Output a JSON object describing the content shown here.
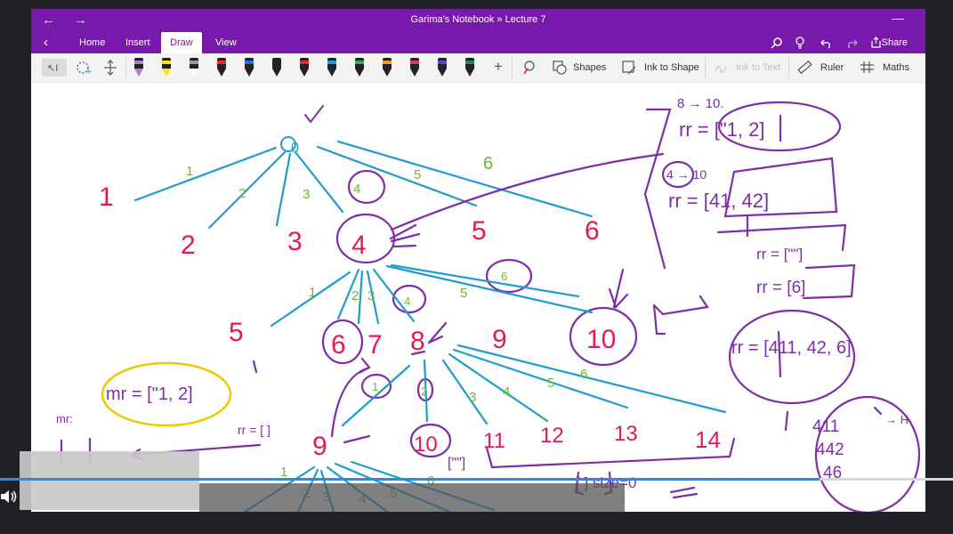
{
  "window": {
    "title": "Garima's Notebook » Lecture 7"
  },
  "ribbon": {
    "tabs": [
      "Home",
      "Insert",
      "Draw",
      "View"
    ],
    "active_tab": "Draw",
    "share_label": "Share"
  },
  "toolbar": {
    "pens": [
      {
        "band": "#b57ad6",
        "tip": "#b57ad6"
      },
      {
        "band": "#f4e600",
        "tip": "#f4e600"
      },
      {
        "band": "#9a9a9a",
        "tip": "#ffffff"
      },
      {
        "band": "#e0301e",
        "tip": "#222"
      },
      {
        "band": "#1a73e8",
        "tip": "#222"
      },
      {
        "band": "#222222",
        "tip": "#222"
      },
      {
        "band": "#e0301e",
        "tip": "#222"
      },
      {
        "band": "#0fa0e8",
        "tip": "#222"
      },
      {
        "band": "#34a853",
        "tip": "#222"
      },
      {
        "band": "#f29b1b",
        "tip": "#222"
      },
      {
        "band": "#e8307a",
        "tip": "#222"
      },
      {
        "band": "#6a3bd1",
        "tip": "#222"
      },
      {
        "band": "#1e8a5a",
        "tip": "#222"
      }
    ],
    "shapes_label": "Shapes",
    "ink_to_shape_label": "Ink to Shape",
    "ink_to_text_label": "Ink to Text",
    "ruler_label": "Ruler",
    "maths_label": "Maths"
  },
  "player": {
    "progress": 0.86
  },
  "colors": {
    "accent": "#7719aa",
    "ink_red": "#e8194e",
    "ink_blue": "#1f9ccf",
    "ink_green": "#6cbb2a",
    "ink_purple": "#7e2ea6",
    "ink_yellow": "#f0c800"
  },
  "notes": {
    "root": "0",
    "level1": [
      "1",
      "2",
      "3",
      "4",
      "5",
      "6"
    ],
    "edges1": [
      "1",
      "2",
      "3",
      "4",
      "5",
      "6"
    ],
    "level2": [
      "5",
      "6",
      "7",
      "8",
      "9",
      "10"
    ],
    "edges2": [
      "1",
      "2",
      "3",
      "4",
      "5",
      "6"
    ],
    "level3": [
      "9",
      "10",
      "11",
      "12",
      "13",
      "14"
    ],
    "edges3": [
      "1",
      "2",
      "3",
      "4",
      "5",
      "6"
    ],
    "edges4": [
      "1",
      "2",
      "3",
      "4",
      "5",
      "6"
    ],
    "right_top": [
      "8 → 10.",
      "rr = [\"1, 2]",
      "4 → 10",
      "rr = [41, 42]",
      "rr = [\"\"]",
      "rr = [6]",
      "rr = [411, 42, 6]"
    ],
    "right_bottom": [
      "411",
      "442",
      "46",
      "→ H"
    ],
    "left_notes": [
      "mr = [\"1, 2]",
      "mr:",
      "rr = [ ]",
      "[\"\"]",
      "[ ] size=0"
    ]
  }
}
